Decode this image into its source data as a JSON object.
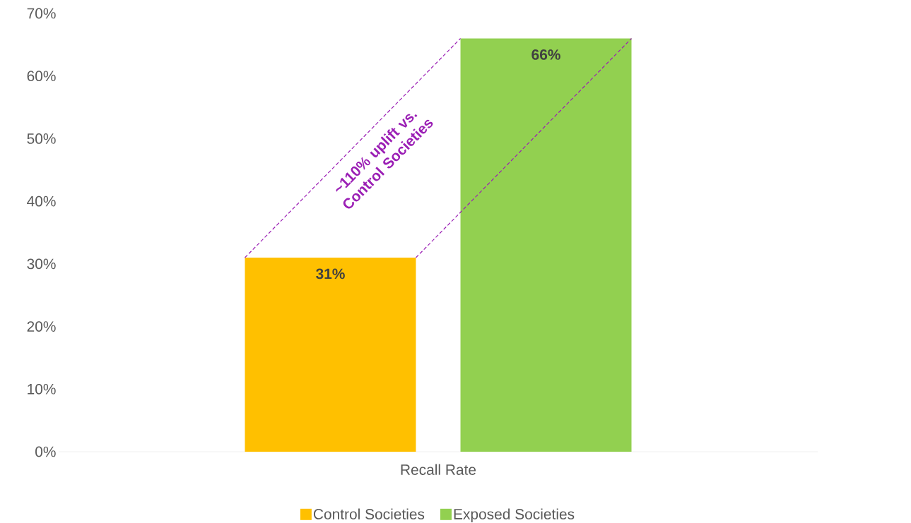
{
  "chart_data": {
    "type": "bar",
    "categories": [
      "Recall Rate"
    ],
    "series": [
      {
        "name": "Control Societies",
        "color": "#ffc000",
        "values": [
          31
        ],
        "value_labels": [
          "31%"
        ]
      },
      {
        "name": "Exposed Societies",
        "color": "#92d050",
        "values": [
          66
        ],
        "value_labels": [
          "66%"
        ]
      }
    ],
    "ylim": [
      0,
      70
    ],
    "yticks": [
      {
        "value": 0,
        "label": "0%"
      },
      {
        "value": 10,
        "label": "10%"
      },
      {
        "value": 20,
        "label": "20%"
      },
      {
        "value": 30,
        "label": "30%"
      },
      {
        "value": 40,
        "label": "40%"
      },
      {
        "value": 50,
        "label": "50%"
      },
      {
        "value": 60,
        "label": "60%"
      },
      {
        "value": 70,
        "label": "70%"
      }
    ],
    "annotations": [
      "~110% uplift vs. Control Societies"
    ],
    "legend": "bottom"
  }
}
